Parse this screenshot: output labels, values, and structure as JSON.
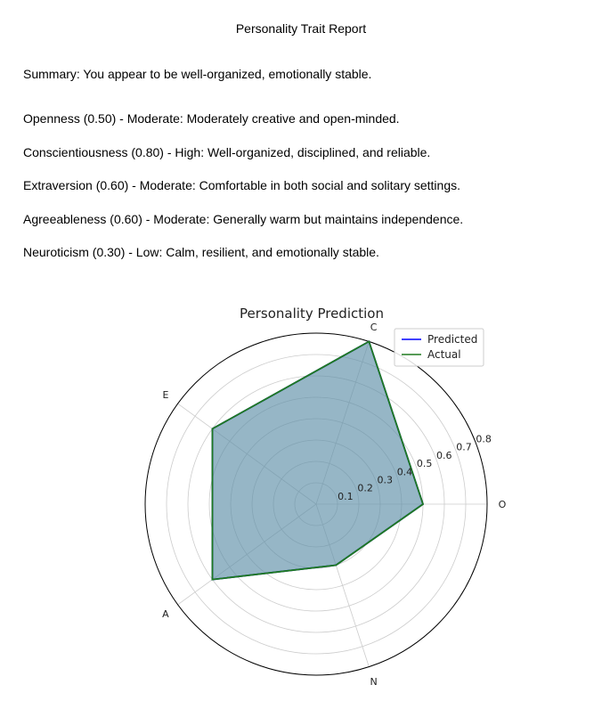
{
  "report": {
    "title": "Personality Trait Report",
    "summary": "Summary: You appear to be well-organized, emotionally stable.",
    "traits": [
      "Openness (0.50) - Moderate: Moderately creative and open-minded.",
      "Conscientiousness (0.80) - High: Well-organized, disciplined, and reliable.",
      "Extraversion (0.60) - Moderate: Comfortable in both social and solitary settings.",
      "Agreeableness (0.60) - Moderate: Generally warm but maintains independence.",
      "Neuroticism (0.30) - Low: Calm, resilient, and emotionally stable."
    ]
  },
  "chart_data": {
    "type": "radar",
    "title": "Personality Prediction",
    "categories": [
      "O",
      "C",
      "E",
      "A",
      "N"
    ],
    "radial_ticks": [
      "0.1",
      "0.2",
      "0.3",
      "0.4",
      "0.5",
      "0.6",
      "0.7",
      "0.8"
    ],
    "rlim": [
      0,
      0.8
    ],
    "grid": true,
    "legend_position": "top-right",
    "series": [
      {
        "name": "Predicted",
        "values": [
          0.5,
          0.8,
          0.6,
          0.6,
          0.3
        ],
        "color": "#0000ff"
      },
      {
        "name": "Actual",
        "values": [
          0.5,
          0.8,
          0.6,
          0.6,
          0.3
        ],
        "color": "#1f7a1f"
      }
    ],
    "fill_color": "#5e8fa8"
  }
}
